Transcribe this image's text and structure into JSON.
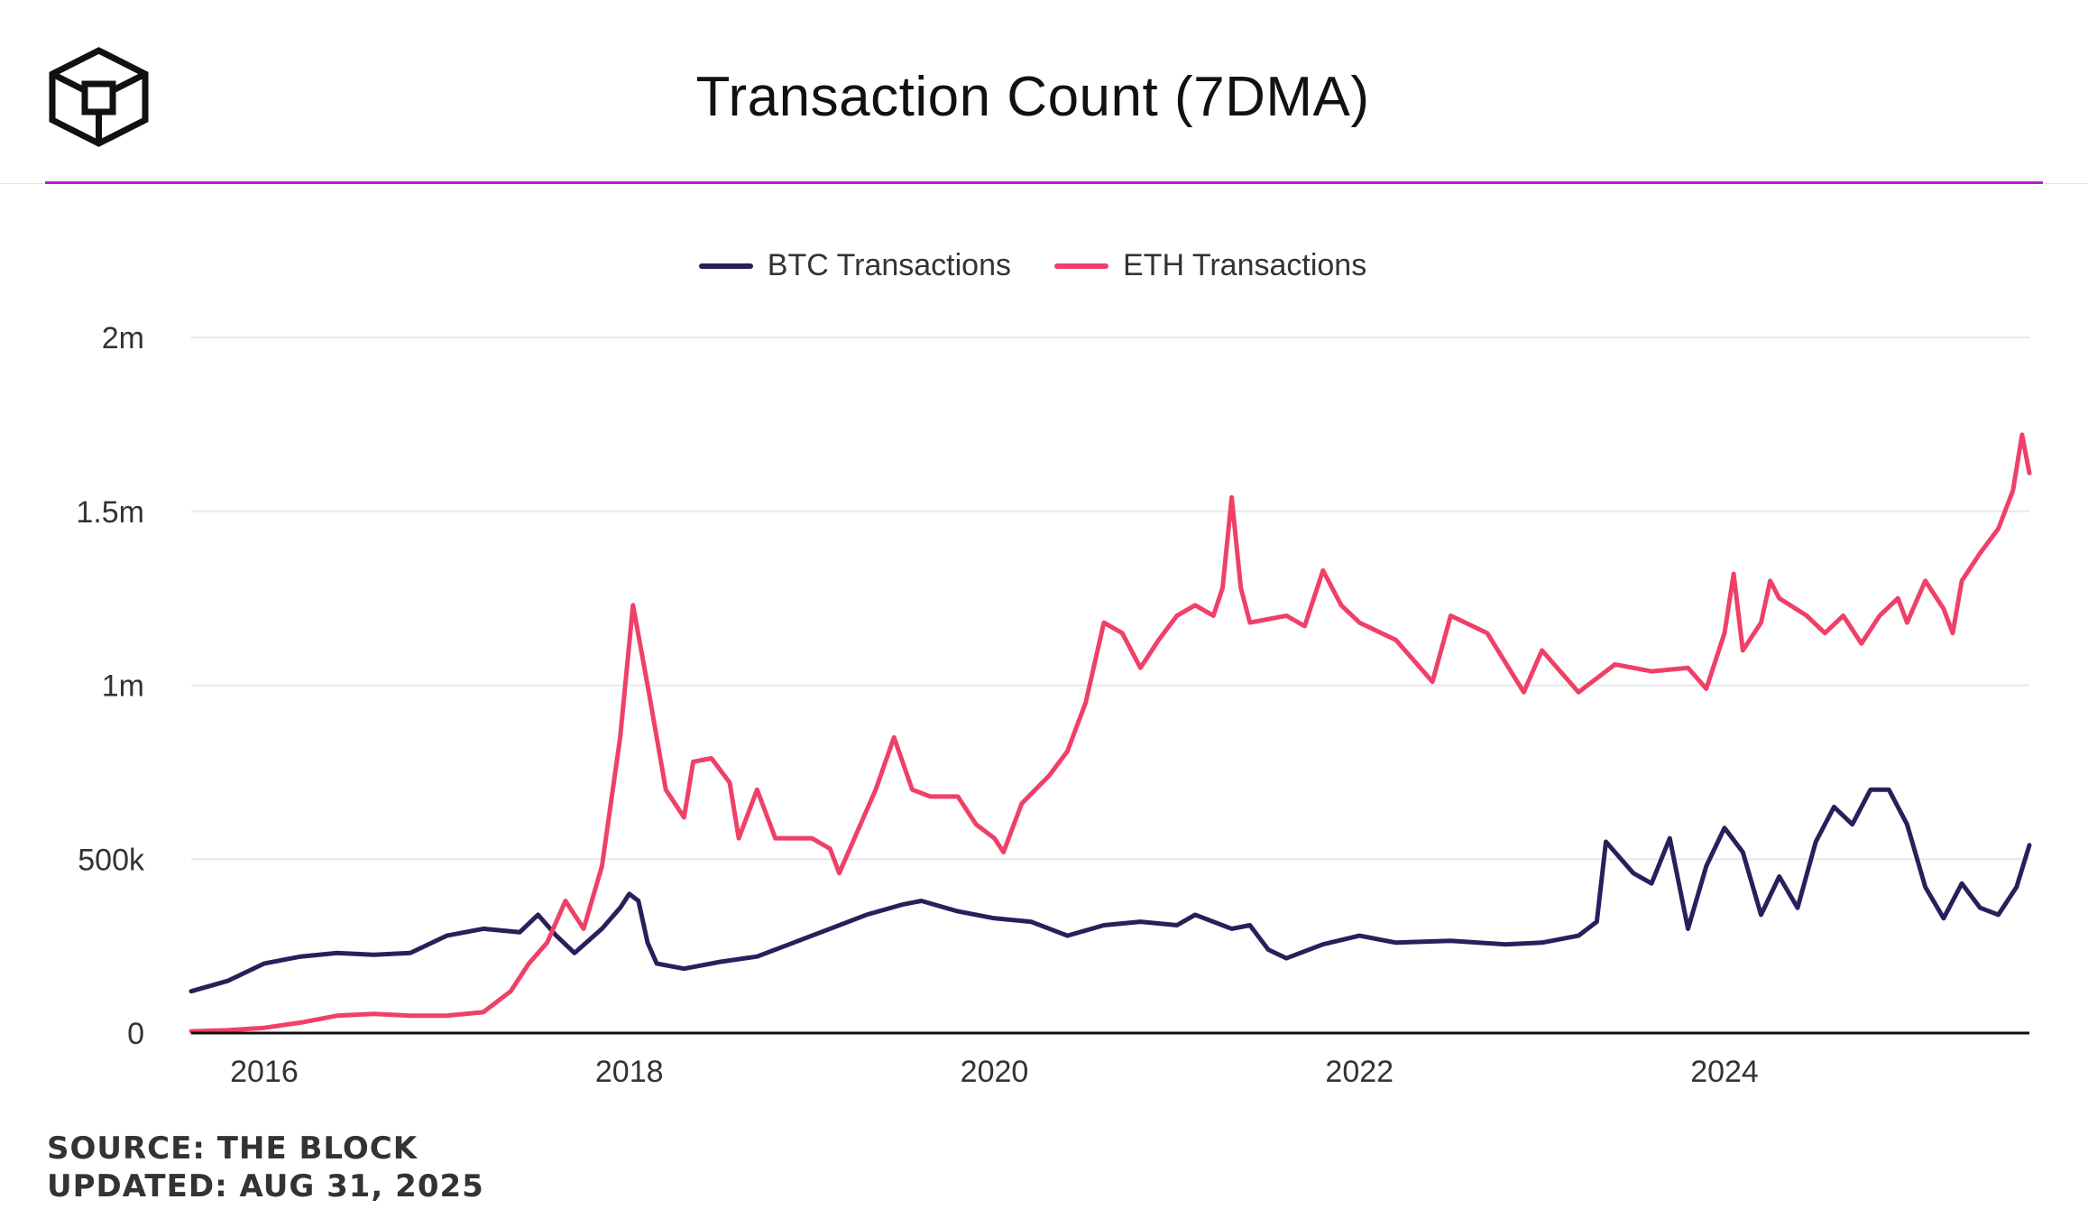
{
  "header": {
    "title": "Transaction Count (7DMA)",
    "logo_icon": "the-block-cube-logo"
  },
  "legend": [
    {
      "label": "BTC Transactions",
      "color": "#2a1f5c"
    },
    {
      "label": "ETH Transactions",
      "color": "#ef4068"
    }
  ],
  "colors": {
    "accent_rule": "#b71ed3",
    "gridline": "#e8e8e8",
    "axis": "#111111"
  },
  "footer": {
    "source": "SOURCE: THE BLOCK",
    "updated": "UPDATED: AUG 31, 2025"
  },
  "chart_data": {
    "type": "line",
    "title": "Transaction Count (7DMA)",
    "xlabel": "",
    "ylabel": "",
    "xlim": [
      2015.6,
      2025.67
    ],
    "ylim": [
      0,
      2000000
    ],
    "x_ticks": [
      2016,
      2018,
      2020,
      2022,
      2024
    ],
    "x_tick_labels": [
      "2016",
      "2018",
      "2020",
      "2022",
      "2024"
    ],
    "y_ticks": [
      0,
      500000,
      1000000,
      1500000,
      2000000
    ],
    "y_tick_labels": [
      "0",
      "500k",
      "1m",
      "1.5m",
      "2m"
    ],
    "grid": true,
    "legend_position": "top-center",
    "series": [
      {
        "name": "BTC Transactions",
        "color": "#2a1f5c",
        "points": [
          [
            2015.6,
            120000
          ],
          [
            2015.8,
            150000
          ],
          [
            2016.0,
            200000
          ],
          [
            2016.2,
            220000
          ],
          [
            2016.4,
            230000
          ],
          [
            2016.6,
            225000
          ],
          [
            2016.8,
            230000
          ],
          [
            2017.0,
            280000
          ],
          [
            2017.2,
            300000
          ],
          [
            2017.4,
            290000
          ],
          [
            2017.5,
            340000
          ],
          [
            2017.6,
            280000
          ],
          [
            2017.7,
            230000
          ],
          [
            2017.85,
            300000
          ],
          [
            2017.95,
            360000
          ],
          [
            2018.0,
            400000
          ],
          [
            2018.05,
            380000
          ],
          [
            2018.1,
            260000
          ],
          [
            2018.15,
            200000
          ],
          [
            2018.3,
            185000
          ],
          [
            2018.5,
            205000
          ],
          [
            2018.7,
            220000
          ],
          [
            2018.9,
            260000
          ],
          [
            2019.1,
            300000
          ],
          [
            2019.3,
            340000
          ],
          [
            2019.5,
            370000
          ],
          [
            2019.6,
            380000
          ],
          [
            2019.8,
            350000
          ],
          [
            2020.0,
            330000
          ],
          [
            2020.2,
            320000
          ],
          [
            2020.4,
            280000
          ],
          [
            2020.6,
            310000
          ],
          [
            2020.8,
            320000
          ],
          [
            2021.0,
            310000
          ],
          [
            2021.1,
            340000
          ],
          [
            2021.3,
            300000
          ],
          [
            2021.4,
            310000
          ],
          [
            2021.5,
            240000
          ],
          [
            2021.6,
            215000
          ],
          [
            2021.8,
            255000
          ],
          [
            2022.0,
            280000
          ],
          [
            2022.2,
            260000
          ],
          [
            2022.5,
            265000
          ],
          [
            2022.8,
            255000
          ],
          [
            2023.0,
            260000
          ],
          [
            2023.2,
            280000
          ],
          [
            2023.3,
            320000
          ],
          [
            2023.35,
            550000
          ],
          [
            2023.5,
            460000
          ],
          [
            2023.6,
            430000
          ],
          [
            2023.7,
            560000
          ],
          [
            2023.8,
            300000
          ],
          [
            2023.9,
            480000
          ],
          [
            2024.0,
            590000
          ],
          [
            2024.1,
            520000
          ],
          [
            2024.2,
            340000
          ],
          [
            2024.3,
            450000
          ],
          [
            2024.4,
            360000
          ],
          [
            2024.5,
            550000
          ],
          [
            2024.6,
            650000
          ],
          [
            2024.7,
            600000
          ],
          [
            2024.8,
            700000
          ],
          [
            2024.9,
            700000
          ],
          [
            2025.0,
            600000
          ],
          [
            2025.1,
            420000
          ],
          [
            2025.2,
            330000
          ],
          [
            2025.3,
            430000
          ],
          [
            2025.4,
            360000
          ],
          [
            2025.5,
            340000
          ],
          [
            2025.6,
            420000
          ],
          [
            2025.67,
            540000
          ]
        ]
      },
      {
        "name": "ETH Transactions",
        "color": "#ef4068",
        "points": [
          [
            2015.6,
            5000
          ],
          [
            2015.8,
            8000
          ],
          [
            2016.0,
            15000
          ],
          [
            2016.2,
            30000
          ],
          [
            2016.4,
            50000
          ],
          [
            2016.6,
            55000
          ],
          [
            2016.8,
            50000
          ],
          [
            2017.0,
            50000
          ],
          [
            2017.2,
            60000
          ],
          [
            2017.35,
            120000
          ],
          [
            2017.45,
            200000
          ],
          [
            2017.55,
            260000
          ],
          [
            2017.65,
            380000
          ],
          [
            2017.75,
            300000
          ],
          [
            2017.85,
            480000
          ],
          [
            2017.95,
            850000
          ],
          [
            2018.02,
            1230000
          ],
          [
            2018.1,
            1000000
          ],
          [
            2018.2,
            700000
          ],
          [
            2018.3,
            620000
          ],
          [
            2018.35,
            780000
          ],
          [
            2018.45,
            790000
          ],
          [
            2018.55,
            720000
          ],
          [
            2018.6,
            560000
          ],
          [
            2018.7,
            700000
          ],
          [
            2018.8,
            560000
          ],
          [
            2018.9,
            560000
          ],
          [
            2019.0,
            560000
          ],
          [
            2019.1,
            530000
          ],
          [
            2019.15,
            460000
          ],
          [
            2019.25,
            580000
          ],
          [
            2019.35,
            700000
          ],
          [
            2019.45,
            850000
          ],
          [
            2019.55,
            700000
          ],
          [
            2019.65,
            680000
          ],
          [
            2019.8,
            680000
          ],
          [
            2019.9,
            600000
          ],
          [
            2020.0,
            560000
          ],
          [
            2020.05,
            520000
          ],
          [
            2020.15,
            660000
          ],
          [
            2020.3,
            740000
          ],
          [
            2020.4,
            810000
          ],
          [
            2020.5,
            950000
          ],
          [
            2020.6,
            1180000
          ],
          [
            2020.7,
            1150000
          ],
          [
            2020.8,
            1050000
          ],
          [
            2020.9,
            1130000
          ],
          [
            2021.0,
            1200000
          ],
          [
            2021.1,
            1230000
          ],
          [
            2021.2,
            1200000
          ],
          [
            2021.25,
            1280000
          ],
          [
            2021.3,
            1540000
          ],
          [
            2021.35,
            1280000
          ],
          [
            2021.4,
            1180000
          ],
          [
            2021.6,
            1200000
          ],
          [
            2021.7,
            1170000
          ],
          [
            2021.8,
            1330000
          ],
          [
            2021.9,
            1230000
          ],
          [
            2022.0,
            1180000
          ],
          [
            2022.2,
            1130000
          ],
          [
            2022.4,
            1010000
          ],
          [
            2022.5,
            1200000
          ],
          [
            2022.7,
            1150000
          ],
          [
            2022.9,
            980000
          ],
          [
            2023.0,
            1100000
          ],
          [
            2023.2,
            980000
          ],
          [
            2023.4,
            1060000
          ],
          [
            2023.6,
            1040000
          ],
          [
            2023.8,
            1050000
          ],
          [
            2023.9,
            990000
          ],
          [
            2024.0,
            1150000
          ],
          [
            2024.05,
            1320000
          ],
          [
            2024.1,
            1100000
          ],
          [
            2024.2,
            1180000
          ],
          [
            2024.25,
            1300000
          ],
          [
            2024.3,
            1250000
          ],
          [
            2024.45,
            1200000
          ],
          [
            2024.55,
            1150000
          ],
          [
            2024.65,
            1200000
          ],
          [
            2024.75,
            1120000
          ],
          [
            2024.85,
            1200000
          ],
          [
            2024.95,
            1250000
          ],
          [
            2025.0,
            1180000
          ],
          [
            2025.1,
            1300000
          ],
          [
            2025.2,
            1220000
          ],
          [
            2025.25,
            1150000
          ],
          [
            2025.3,
            1300000
          ],
          [
            2025.4,
            1380000
          ],
          [
            2025.5,
            1450000
          ],
          [
            2025.58,
            1560000
          ],
          [
            2025.63,
            1720000
          ],
          [
            2025.67,
            1610000
          ]
        ]
      }
    ]
  }
}
